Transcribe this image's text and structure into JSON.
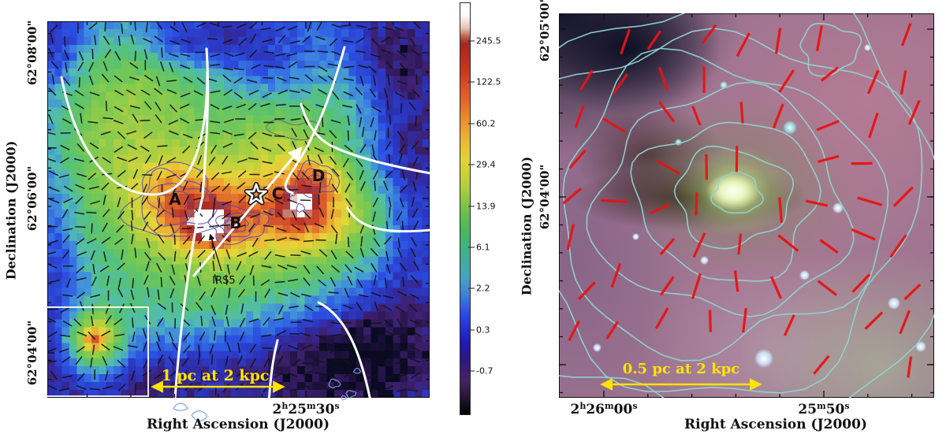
{
  "panels": {
    "left": {
      "xlabel": "Right Ascension (J2000)",
      "ylabel": "Declination (J2000)",
      "yticks": [
        "62°08'00\"",
        "62°06'00\"",
        "62°04'00\""
      ],
      "xtick": {
        "h": "2",
        "h_sup": "h",
        "m": "25",
        "m_sup": "m",
        "s": "30",
        "s_sup": "s"
      },
      "scalebar_label": "1 pc at 2 kpc",
      "regions": [
        "A",
        "B",
        "C",
        "D"
      ],
      "source_label": "IRS5",
      "colorbar_ticks": [
        "245.5",
        "122.5",
        "60.2",
        "29.4",
        "13.9",
        "6.1",
        "2.2",
        "0.3",
        "-0.7"
      ]
    },
    "right": {
      "xlabel": "Right Ascension (J2000)",
      "ylabel": "Declination (J2000)",
      "yticks": [
        "62°05'00\"",
        "62°04'00\""
      ],
      "xtick1": {
        "h": "2",
        "h_sup": "h",
        "m": "26",
        "m_sup": "m",
        "s": "00",
        "s_sup": "s"
      },
      "xtick2": {
        "m": "25",
        "m_sup": "m",
        "s": "50",
        "s_sup": "s"
      },
      "scalebar_label": "0.5 pc at 2 kpc"
    }
  },
  "symbols": {
    "star_marker": "outlined five-point star",
    "scalebar_arrow": "double-headed arrow",
    "irs5_arrow": "pointer arrow"
  },
  "colors": {
    "scalebar": "#ffe400",
    "left_vectors": "#141414",
    "right_vectors": "#e81212",
    "left_contours": "#5147b8",
    "right_contours": "#8fd4cf",
    "streamlines": "#ffffff",
    "outside_contours": "#87a0ee"
  }
}
